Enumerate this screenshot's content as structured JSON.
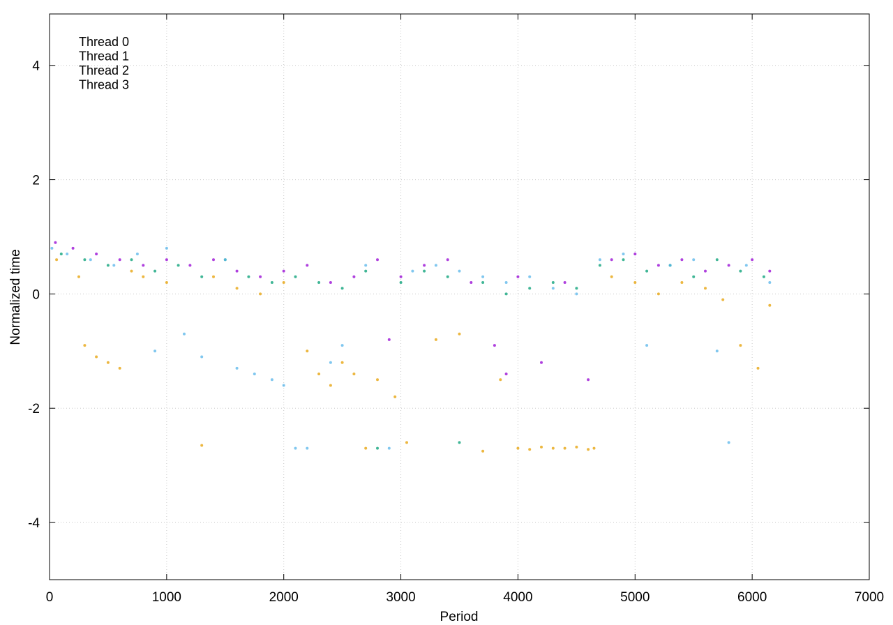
{
  "chart_data": {
    "type": "scatter",
    "title": "",
    "xlabel": "Period",
    "ylabel": "Normalized time",
    "xlim": [
      0,
      7000
    ],
    "ylim": [
      -5,
      4.9
    ],
    "x_ticks": [
      0,
      1000,
      2000,
      3000,
      4000,
      5000,
      6000,
      7000
    ],
    "y_ticks": [
      -4,
      -2,
      0,
      2,
      4
    ],
    "x_tick_labels": [
      "0",
      "1000",
      "2000",
      "3000",
      "4000",
      "5000",
      "6000",
      "7000"
    ],
    "y_tick_labels": [
      "-4",
      "-2",
      "0",
      "2",
      "4"
    ],
    "grid": true,
    "legend_position": "top-left",
    "series": [
      {
        "name": "Thread 0",
        "color": "#9400d3",
        "points": [
          [
            50,
            0.9
          ],
          [
            200,
            0.8
          ],
          [
            400,
            0.7
          ],
          [
            600,
            0.6
          ],
          [
            800,
            0.5
          ],
          [
            1000,
            0.6
          ],
          [
            1200,
            0.5
          ],
          [
            1400,
            0.6
          ],
          [
            1600,
            0.4
          ],
          [
            1800,
            0.3
          ],
          [
            2000,
            0.4
          ],
          [
            2200,
            0.5
          ],
          [
            2400,
            0.2
          ],
          [
            2600,
            0.3
          ],
          [
            2800,
            0.6
          ],
          [
            2900,
            -0.8
          ],
          [
            3000,
            0.3
          ],
          [
            3200,
            0.5
          ],
          [
            3400,
            0.6
          ],
          [
            3600,
            0.2
          ],
          [
            3800,
            -0.9
          ],
          [
            3900,
            -1.4
          ],
          [
            4000,
            0.3
          ],
          [
            4200,
            -1.2
          ],
          [
            4400,
            0.2
          ],
          [
            4600,
            -1.5
          ],
          [
            4800,
            0.6
          ],
          [
            5000,
            0.7
          ],
          [
            5200,
            0.5
          ],
          [
            5400,
            0.6
          ],
          [
            5600,
            0.4
          ],
          [
            5800,
            0.5
          ],
          [
            6000,
            0.6
          ],
          [
            6150,
            0.4
          ]
        ]
      },
      {
        "name": "Thread 1",
        "color": "#009e73",
        "points": [
          [
            100,
            0.7
          ],
          [
            300,
            0.6
          ],
          [
            500,
            0.5
          ],
          [
            700,
            0.6
          ],
          [
            900,
            0.4
          ],
          [
            1100,
            0.5
          ],
          [
            1300,
            0.3
          ],
          [
            1500,
            0.6
          ],
          [
            1700,
            0.3
          ],
          [
            1900,
            0.2
          ],
          [
            2100,
            0.3
          ],
          [
            2300,
            0.2
          ],
          [
            2500,
            0.1
          ],
          [
            2700,
            0.4
          ],
          [
            2800,
            -2.7
          ],
          [
            3000,
            0.2
          ],
          [
            3200,
            0.4
          ],
          [
            3400,
            0.3
          ],
          [
            3500,
            -2.6
          ],
          [
            3700,
            0.2
          ],
          [
            3900,
            0.0
          ],
          [
            4100,
            0.1
          ],
          [
            4300,
            0.2
          ],
          [
            4500,
            0.1
          ],
          [
            4700,
            0.5
          ],
          [
            4900,
            0.6
          ],
          [
            5100,
            0.4
          ],
          [
            5300,
            0.5
          ],
          [
            5500,
            0.3
          ],
          [
            5700,
            0.6
          ],
          [
            5900,
            0.4
          ],
          [
            6100,
            0.3
          ]
        ]
      },
      {
        "name": "Thread 2",
        "color": "#56b4e9",
        "points": [
          [
            20,
            0.8
          ],
          [
            150,
            0.7
          ],
          [
            350,
            0.6
          ],
          [
            550,
            0.5
          ],
          [
            750,
            0.7
          ],
          [
            900,
            -1.0
          ],
          [
            1000,
            0.8
          ],
          [
            1150,
            -0.7
          ],
          [
            1300,
            -1.1
          ],
          [
            1500,
            0.6
          ],
          [
            1600,
            -1.3
          ],
          [
            1750,
            -1.4
          ],
          [
            1900,
            -1.5
          ],
          [
            2000,
            -1.6
          ],
          [
            2100,
            -2.7
          ],
          [
            2200,
            -2.7
          ],
          [
            2400,
            -1.2
          ],
          [
            2500,
            -0.9
          ],
          [
            2700,
            0.5
          ],
          [
            2900,
            -2.7
          ],
          [
            3100,
            0.4
          ],
          [
            3300,
            0.5
          ],
          [
            3500,
            0.4
          ],
          [
            3700,
            0.3
          ],
          [
            3900,
            0.2
          ],
          [
            4100,
            0.3
          ],
          [
            4300,
            0.1
          ],
          [
            4500,
            0.0
          ],
          [
            4700,
            0.6
          ],
          [
            4900,
            0.7
          ],
          [
            5100,
            -0.9
          ],
          [
            5300,
            0.5
          ],
          [
            5500,
            0.6
          ],
          [
            5700,
            -1.0
          ],
          [
            5800,
            -2.6
          ],
          [
            5950,
            0.5
          ],
          [
            6150,
            0.2
          ]
        ]
      },
      {
        "name": "Thread 3",
        "color": "#e69f00",
        "points": [
          [
            60,
            0.6
          ],
          [
            250,
            0.3
          ],
          [
            300,
            -0.9
          ],
          [
            400,
            -1.1
          ],
          [
            500,
            -1.2
          ],
          [
            600,
            -1.3
          ],
          [
            700,
            0.4
          ],
          [
            800,
            0.3
          ],
          [
            1000,
            0.2
          ],
          [
            1300,
            -2.65
          ],
          [
            1400,
            0.3
          ],
          [
            1600,
            0.1
          ],
          [
            1800,
            0.0
          ],
          [
            2000,
            0.2
          ],
          [
            2200,
            -1.0
          ],
          [
            2300,
            -1.4
          ],
          [
            2400,
            -1.6
          ],
          [
            2500,
            -1.2
          ],
          [
            2600,
            -1.4
          ],
          [
            2700,
            -2.7
          ],
          [
            2800,
            -1.5
          ],
          [
            2950,
            -1.8
          ],
          [
            3050,
            -2.6
          ],
          [
            3300,
            -0.8
          ],
          [
            3500,
            -0.7
          ],
          [
            3700,
            -2.75
          ],
          [
            3850,
            -1.5
          ],
          [
            4000,
            -2.7
          ],
          [
            4100,
            -2.72
          ],
          [
            4200,
            -2.68
          ],
          [
            4300,
            -2.7
          ],
          [
            4400,
            -2.7
          ],
          [
            4500,
            -2.68
          ],
          [
            4600,
            -2.72
          ],
          [
            4650,
            -2.7
          ],
          [
            4800,
            0.3
          ],
          [
            5000,
            0.2
          ],
          [
            5200,
            0.0
          ],
          [
            5400,
            0.2
          ],
          [
            5600,
            0.1
          ],
          [
            5750,
            -0.1
          ],
          [
            5900,
            -0.9
          ],
          [
            6050,
            -1.3
          ],
          [
            6150,
            -0.2
          ]
        ]
      }
    ]
  }
}
